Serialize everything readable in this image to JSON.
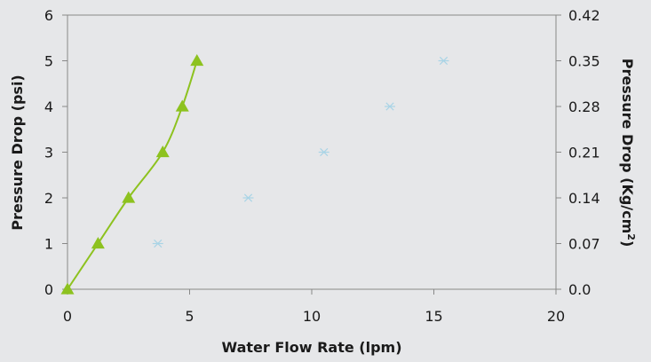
{
  "chart_data": {
    "type": "scatter",
    "title": "",
    "xlabel": "Water Flow Rate (lpm)",
    "ylabel": "Pressure Drop (psi)",
    "y2label": "Pressure Drop (Kg/cm",
    "y2label_sup": "2",
    "y2label_close": ")",
    "xlim": [
      0,
      20
    ],
    "ylim": [
      0,
      6
    ],
    "y2lim": [
      0,
      0.42
    ],
    "xticks": [
      "0",
      "5",
      "10",
      "15",
      "20"
    ],
    "yticks": [
      "0",
      "1",
      "2",
      "3",
      "4",
      "5",
      "6"
    ],
    "y2ticks": [
      "0.0",
      "0.07",
      "0.14",
      "0.21",
      "0.28",
      "0.35",
      "0.42"
    ],
    "grid": false,
    "series": [
      {
        "marker": "triangle",
        "line": true,
        "color": "#8dc21f",
        "points": [
          [
            0,
            0
          ],
          [
            1.25,
            1
          ],
          [
            2.5,
            2
          ],
          [
            3.9,
            3
          ],
          [
            4.7,
            4
          ],
          [
            5.3,
            5
          ]
        ]
      },
      {
        "marker": "asterisk",
        "line": false,
        "color": "#a9d4e6",
        "points": [
          [
            3.7,
            1
          ],
          [
            7.4,
            2
          ],
          [
            10.5,
            3
          ],
          [
            13.2,
            4
          ],
          [
            15.4,
            5
          ]
        ]
      }
    ]
  }
}
